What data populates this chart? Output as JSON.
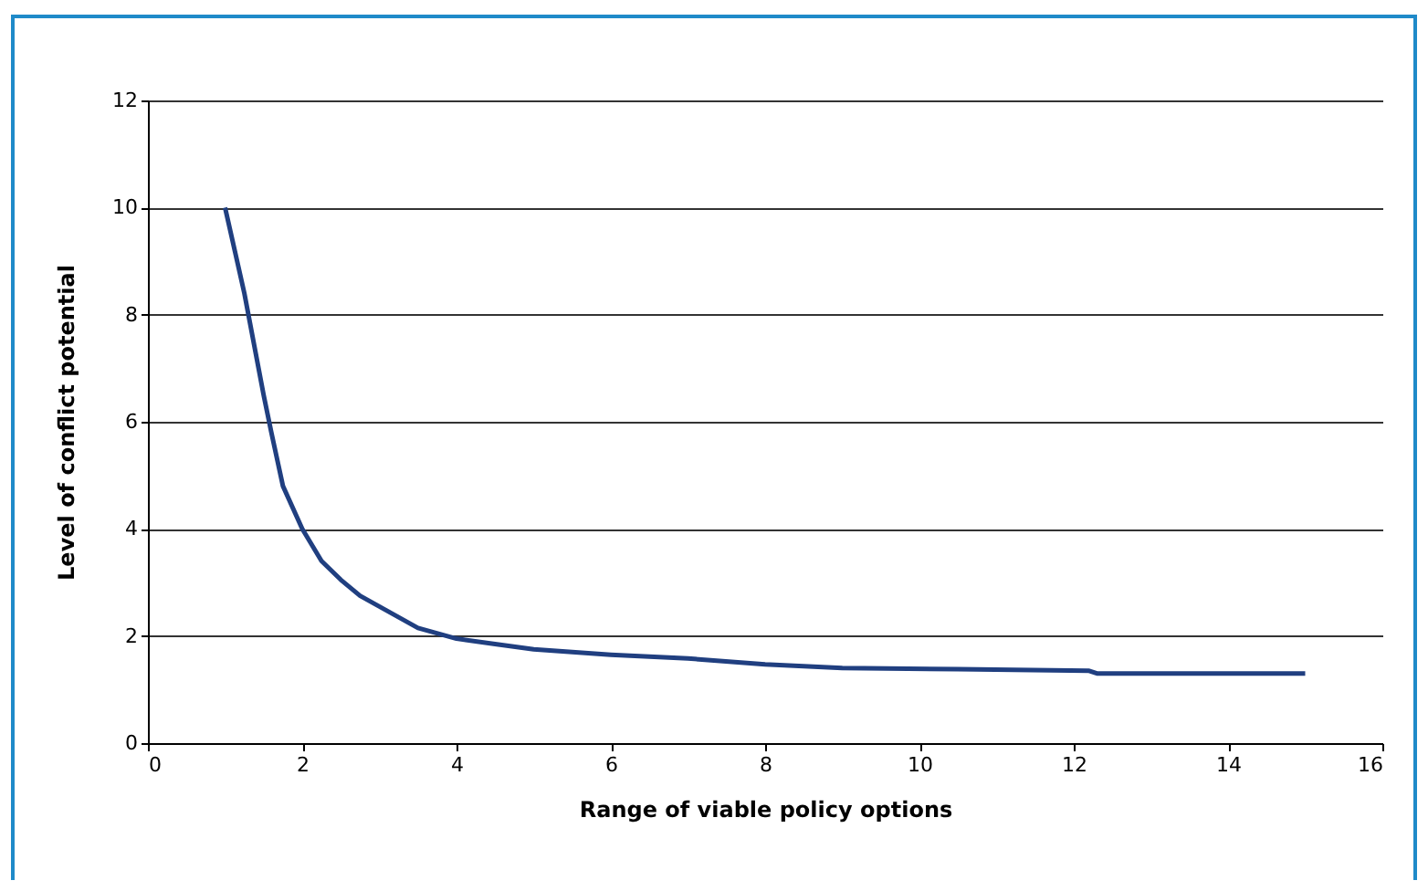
{
  "chart_data": {
    "type": "line",
    "xlabel": "Range of viable policy options",
    "ylabel": "Level of conflict potential",
    "x": [
      1,
      1.25,
      1.5,
      1.6,
      1.75,
      2,
      2.25,
      2.5,
      2.75,
      3,
      3.5,
      4,
      4.5,
      5,
      6,
      7,
      8,
      9,
      10.5,
      12.2,
      12.3,
      15
    ],
    "series": [
      {
        "color": "#203f80",
        "values": [
          10,
          8.4,
          6.5,
          5.8,
          4.8,
          4,
          3.4,
          3.05,
          2.75,
          2.55,
          2.15,
          1.95,
          1.85,
          1.75,
          1.65,
          1.58,
          1.47,
          1.4,
          1.38,
          1.35,
          1.3,
          1.3
        ]
      }
    ],
    "xlim": [
      0,
      16
    ],
    "xticks": [
      0,
      2,
      4,
      6,
      8,
      10,
      12,
      14,
      16
    ],
    "ylim": [
      0,
      12
    ],
    "yticks": [
      0,
      2,
      4,
      6,
      8,
      10,
      12
    ],
    "grid": "y",
    "marker": "none",
    "line_style": "solid"
  }
}
